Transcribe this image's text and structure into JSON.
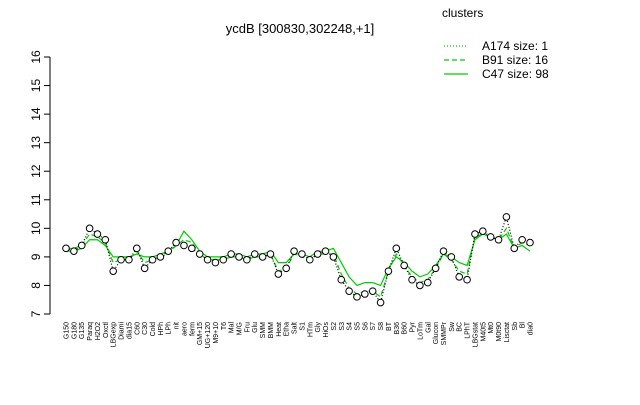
{
  "chart_data": {
    "type": "line",
    "title": "ycdB [300830,302248,+1]",
    "legend_title": "clusters",
    "ylim": [
      7,
      16
    ],
    "yticks": [
      7,
      8,
      9,
      10,
      11,
      12,
      13,
      14,
      15,
      16
    ],
    "categories": [
      "G150",
      "G180",
      "G135",
      "Paraq",
      "H2O2",
      "Oxctl",
      "LBGexp",
      "Diami",
      "dia15",
      "C60",
      "C30",
      "Cold",
      "HPh",
      "LPh",
      "nit",
      "aero",
      "ferm",
      "GM+15",
      "UG+120",
      "M9+10",
      "T6",
      "Mal",
      "M/G",
      "Fru",
      "Glu",
      "SMM",
      "BMM",
      "Heat",
      "Etha",
      "Salt",
      "S1",
      "HTm",
      "Gly",
      "HiOs",
      "S2",
      "S3",
      "S4",
      "S5",
      "S6",
      "S7",
      "S8",
      "BT",
      "B36",
      "B60",
      "Pyr",
      "LoTm",
      "Gal",
      "Glucon",
      "SMMPr",
      "Sw",
      "BC",
      "LPhT",
      "LBGstat",
      "M40t5",
      "Mt0",
      "M0t90",
      "Lisctat",
      "Sb",
      "Bl",
      "dia0"
    ],
    "series": [
      {
        "name": "A174 size: 1",
        "color": "#000000",
        "style": "dotted",
        "markers": true,
        "values": [
          9.3,
          9.2,
          9.4,
          10.0,
          9.8,
          9.6,
          8.5,
          8.9,
          8.9,
          9.3,
          8.6,
          8.9,
          9.0,
          9.2,
          9.5,
          9.4,
          9.3,
          9.1,
          8.9,
          8.8,
          8.9,
          9.1,
          9.0,
          8.9,
          9.1,
          9.0,
          9.1,
          8.4,
          8.6,
          9.2,
          9.1,
          8.9,
          9.1,
          9.2,
          9.0,
          8.2,
          7.8,
          7.6,
          7.7,
          7.8,
          7.4,
          8.5,
          9.3,
          8.7,
          8.2,
          8.0,
          8.1,
          8.6,
          9.2,
          9.0,
          8.3,
          8.2,
          9.8,
          9.9,
          9.7,
          9.6,
          10.4,
          9.3,
          9.6,
          9.5
        ]
      },
      {
        "name": "B91 size: 16",
        "color": "#00cc00",
        "style": "dashed",
        "markers": false,
        "values": [
          9.3,
          9.3,
          9.4,
          9.8,
          9.7,
          9.5,
          8.8,
          8.9,
          8.9,
          9.2,
          8.8,
          8.9,
          9.0,
          9.1,
          9.4,
          9.6,
          9.5,
          9.1,
          8.9,
          8.9,
          8.9,
          9.0,
          9.0,
          8.9,
          9.0,
          9.0,
          9.1,
          8.5,
          8.6,
          9.1,
          9.0,
          8.9,
          9.1,
          9.1,
          9.1,
          8.4,
          7.9,
          7.7,
          7.8,
          7.8,
          7.6,
          8.5,
          9.1,
          8.7,
          8.3,
          8.1,
          8.2,
          8.6,
          9.1,
          8.9,
          8.5,
          8.4,
          9.7,
          9.8,
          9.7,
          9.6,
          10.0,
          9.3,
          9.5,
          9.4
        ]
      },
      {
        "name": "C47 size: 98",
        "color": "#00cc00",
        "style": "solid",
        "markers": false,
        "values": [
          9.2,
          9.2,
          9.3,
          9.6,
          9.6,
          9.4,
          9.0,
          9.0,
          9.0,
          9.1,
          9.0,
          9.0,
          9.1,
          9.2,
          9.4,
          9.9,
          9.6,
          9.2,
          9.0,
          9.0,
          9.0,
          9.1,
          9.1,
          9.0,
          9.1,
          9.1,
          9.2,
          8.8,
          8.8,
          9.1,
          9.1,
          9.0,
          9.2,
          9.2,
          9.3,
          8.8,
          8.3,
          8.0,
          8.1,
          8.1,
          8.0,
          8.6,
          9.0,
          8.8,
          8.5,
          8.3,
          8.4,
          8.7,
          9.1,
          9.0,
          8.8,
          8.7,
          9.6,
          9.8,
          9.7,
          9.6,
          9.8,
          9.3,
          9.4,
          9.2
        ]
      }
    ]
  }
}
